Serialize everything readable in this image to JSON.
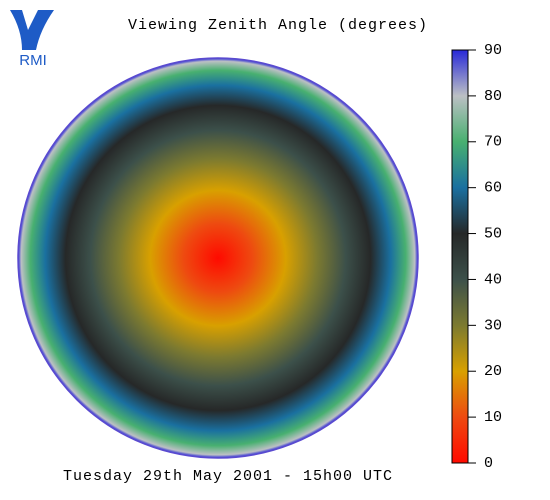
{
  "logo": {
    "text": "RMI"
  },
  "chart_data": {
    "type": "disk",
    "title": "Viewing Zenith Angle (degrees)",
    "footer": "Tuesday 29th May 2001 - 15h00 UTC",
    "clim": [
      0,
      90
    ],
    "cticks": [
      0,
      10,
      20,
      30,
      40,
      50,
      60,
      70,
      80,
      90
    ],
    "colorscale": [
      {
        "value": 0,
        "color": "#ff0a00"
      },
      {
        "value": 10,
        "color": "#ee4a10"
      },
      {
        "value": 20,
        "color": "#d8a000"
      },
      {
        "value": 30,
        "color": "#7c7a30"
      },
      {
        "value": 40,
        "color": "#3c504a"
      },
      {
        "value": 50,
        "color": "#262828"
      },
      {
        "value": 60,
        "color": "#1a70a0"
      },
      {
        "value": 70,
        "color": "#48b070"
      },
      {
        "value": 80,
        "color": "#bcc0c4"
      },
      {
        "value": 90,
        "color": "#2828d8"
      }
    ],
    "outline_color": "#5a4ad0"
  }
}
